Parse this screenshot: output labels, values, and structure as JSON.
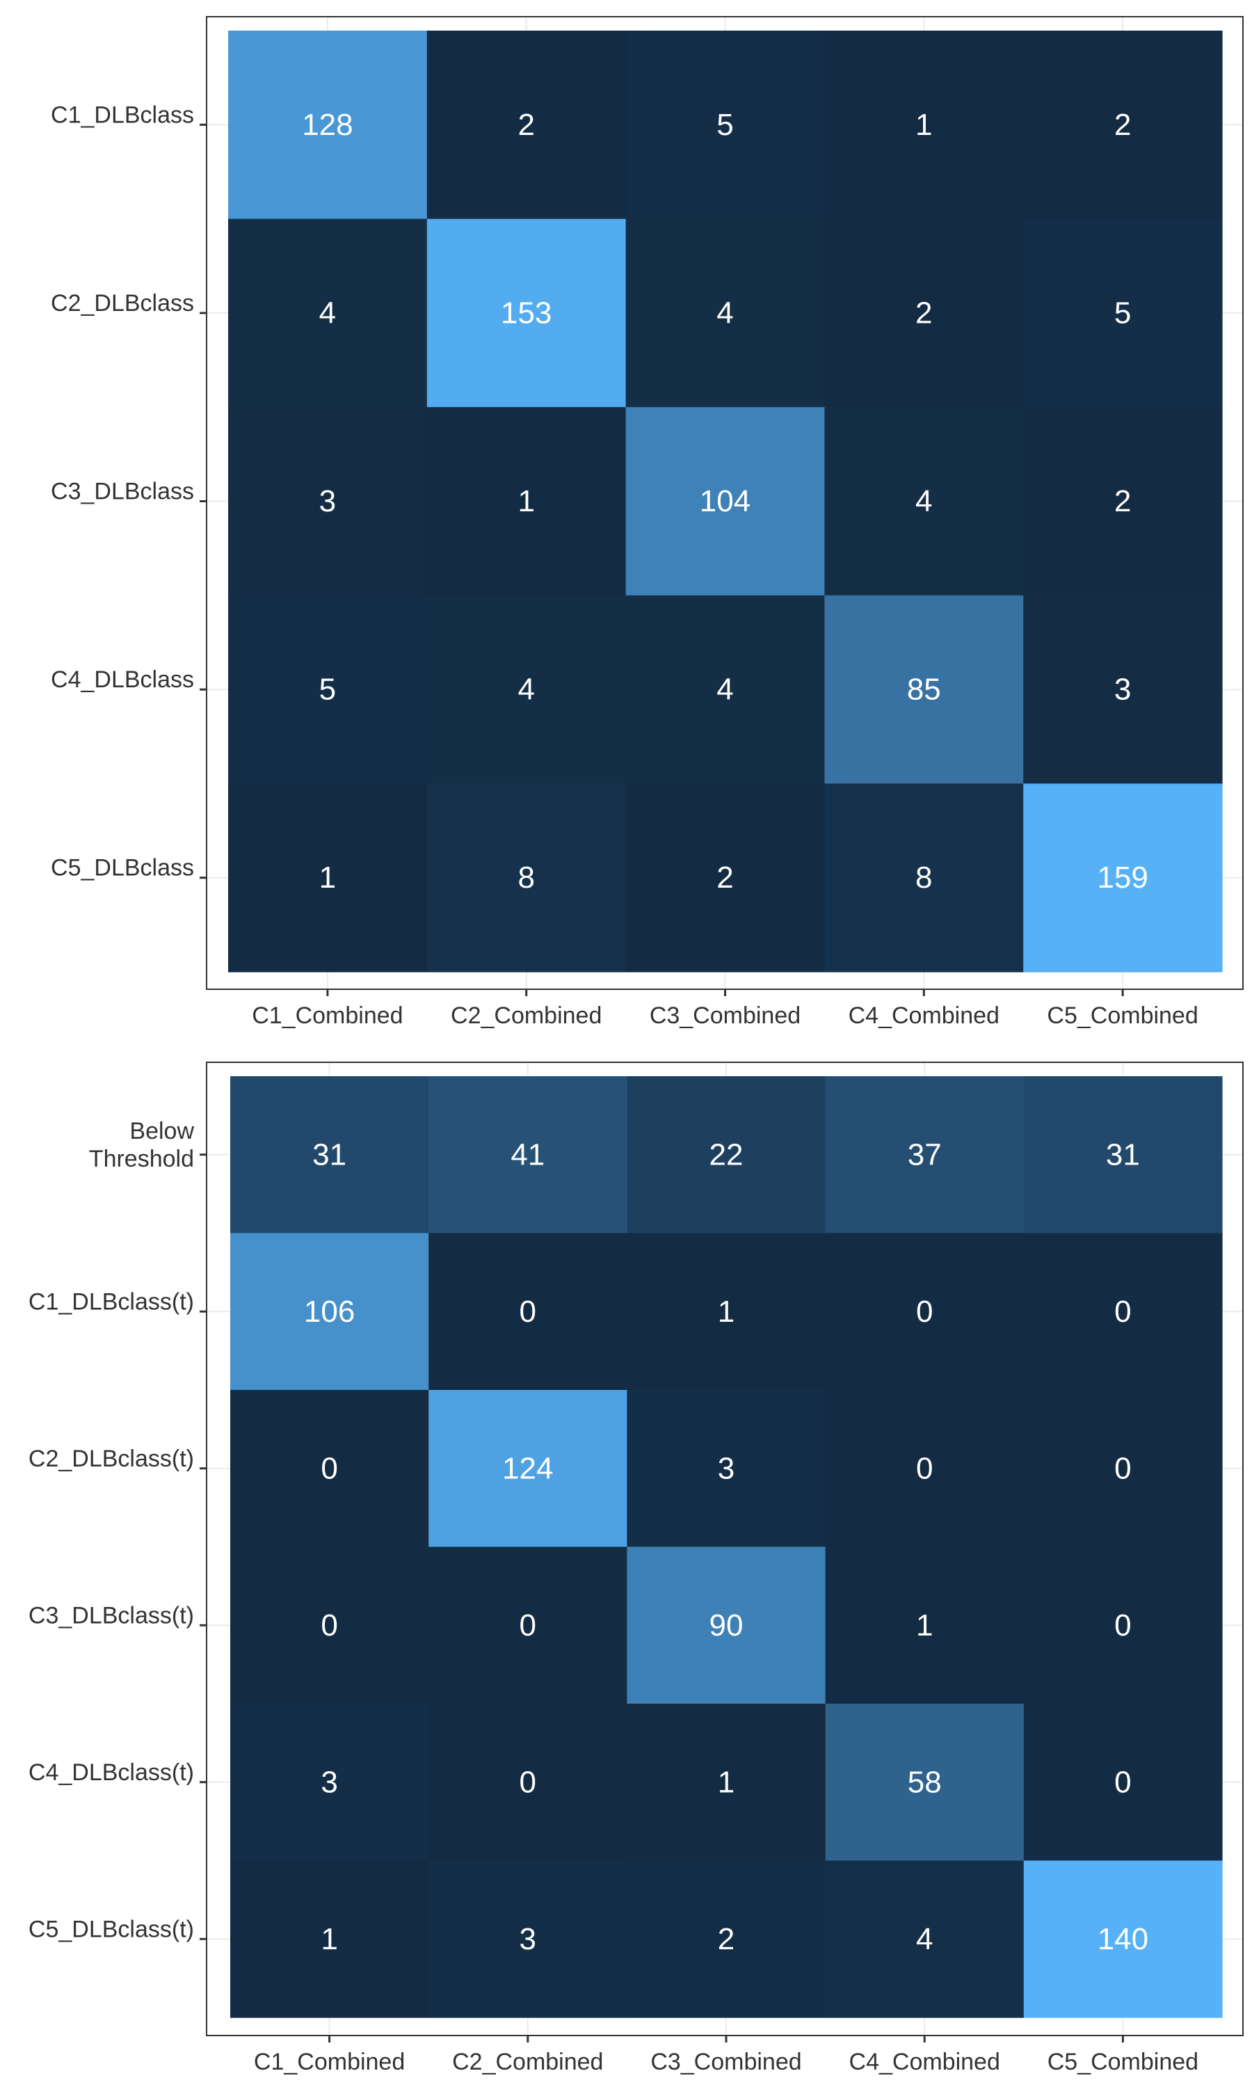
{
  "chart_data": [
    {
      "type": "heatmap",
      "title": "",
      "xlabel": "",
      "ylabel": "",
      "grid": true,
      "legend": "none",
      "x_categories": [
        "C1_Combined",
        "C2_Combined",
        "C3_Combined",
        "C4_Combined",
        "C5_Combined"
      ],
      "y_categories": [
        "C1_DLBclass",
        "C2_DLBclass",
        "C3_DLBclass",
        "C4_DLBclass",
        "C5_DLBclass"
      ],
      "values": [
        [
          128,
          2,
          5,
          1,
          2
        ],
        [
          4,
          153,
          4,
          2,
          5
        ],
        [
          3,
          1,
          104,
          4,
          2
        ],
        [
          5,
          4,
          4,
          85,
          3
        ],
        [
          1,
          8,
          2,
          8,
          159
        ]
      ],
      "color_low": "#132B43",
      "color_high": "#56B1F7"
    },
    {
      "type": "heatmap",
      "title": "",
      "xlabel": "",
      "ylabel": "",
      "grid": true,
      "legend": "none",
      "x_categories": [
        "C1_Combined",
        "C2_Combined",
        "C3_Combined",
        "C4_Combined",
        "C5_Combined"
      ],
      "y_categories": [
        [
          "Below",
          "Threshold"
        ],
        "C1_DLBclass(t)",
        "C2_DLBclass(t)",
        "C3_DLBclass(t)",
        "C4_DLBclass(t)",
        "C5_DLBclass(t)"
      ],
      "values": [
        [
          31,
          41,
          22,
          37,
          31
        ],
        [
          106,
          0,
          1,
          0,
          0
        ],
        [
          0,
          124,
          3,
          0,
          0
        ],
        [
          0,
          0,
          90,
          1,
          0
        ],
        [
          3,
          0,
          1,
          58,
          0
        ],
        [
          1,
          3,
          2,
          4,
          140
        ]
      ],
      "color_low": "#132B43",
      "color_high": "#56B1F7"
    }
  ]
}
